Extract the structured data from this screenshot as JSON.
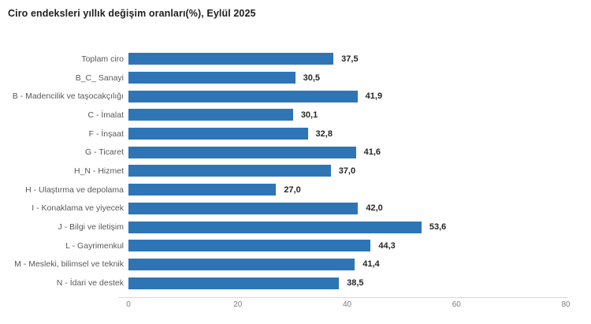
{
  "title": "Ciro endeksleri yıllık değişim oranları(%), Eylül 2025",
  "colors": {
    "bar": "#2e75b6",
    "title": "#1f1f1f",
    "category_label": "#595959",
    "value_label": "#262626",
    "axis_line": "#d9d9d9",
    "tick_label": "#7f7f7f",
    "background": "#ffffff"
  },
  "chart_data": {
    "type": "bar",
    "orientation": "horizontal",
    "title": "Ciro endeksleri yıllık değişim oranları(%), Eylül 2025",
    "categories": [
      "Toplam ciro",
      "B_C_ Sanayi",
      "B - Madencilik ve taşocakçılığı",
      "C - İmalat",
      "F - İnşaat",
      "G - Ticaret",
      "H_N - Hizmet",
      "H - Ulaştırma ve depolama",
      "I - Konaklama ve yiyecek",
      "J - Bilgi ve iletişim",
      "L - Gayrimenkul",
      "M - Mesleki, bilimsel ve teknik",
      "N - İdari ve destek"
    ],
    "values": [
      37.5,
      30.5,
      41.9,
      30.1,
      32.8,
      41.6,
      37.0,
      27.0,
      42.0,
      53.6,
      44.3,
      41.4,
      38.5
    ],
    "value_labels": [
      "37,5",
      "30,5",
      "41,9",
      "30,1",
      "32,8",
      "41,6",
      "37,0",
      "27,0",
      "42,0",
      "53,6",
      "44,3",
      "41,4",
      "38,5"
    ],
    "xlabel": "",
    "ylabel": "",
    "xlim": [
      0,
      80
    ],
    "x_ticks": [
      "0",
      "20",
      "40",
      "60",
      "80"
    ],
    "grid": false,
    "legend": false
  }
}
